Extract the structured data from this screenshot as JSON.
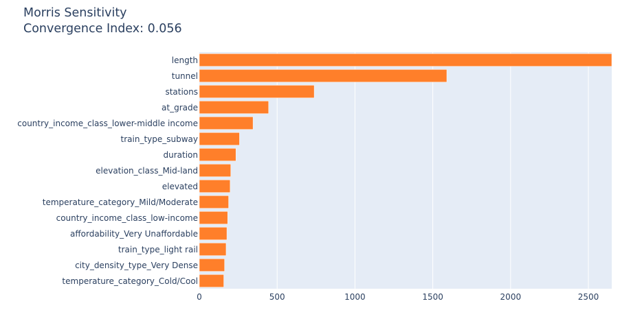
{
  "chart_data": {
    "type": "bar",
    "orientation": "horizontal",
    "title_lines": [
      "Morris Sensitivity",
      "Convergence Index: 0.056"
    ],
    "xlabel": "",
    "ylabel": "",
    "xlim": [
      0,
      2650
    ],
    "xticks": [
      0,
      500,
      1000,
      1500,
      2000,
      2500
    ],
    "grid": true,
    "legend": "none",
    "bar_color": "#ff7f2a",
    "plot_bg": "#e5ecf6",
    "categories": [
      "length",
      "tunnel",
      "stations",
      "at_grade",
      "country_income_class_lower-middle income",
      "train_type_subway",
      "duration",
      "elevation_class_Mid-land",
      "elevated",
      "temperature_category_Mild/Moderate",
      "country_income_class_low-income",
      "affordability_Very Unaffordable",
      "train_type_light rail",
      "city_density_type_Very Dense",
      "temperature_category_Cold/Cool"
    ],
    "values": [
      2650,
      1590,
      738,
      445,
      345,
      258,
      235,
      202,
      198,
      188,
      182,
      177,
      172,
      162,
      157
    ]
  }
}
